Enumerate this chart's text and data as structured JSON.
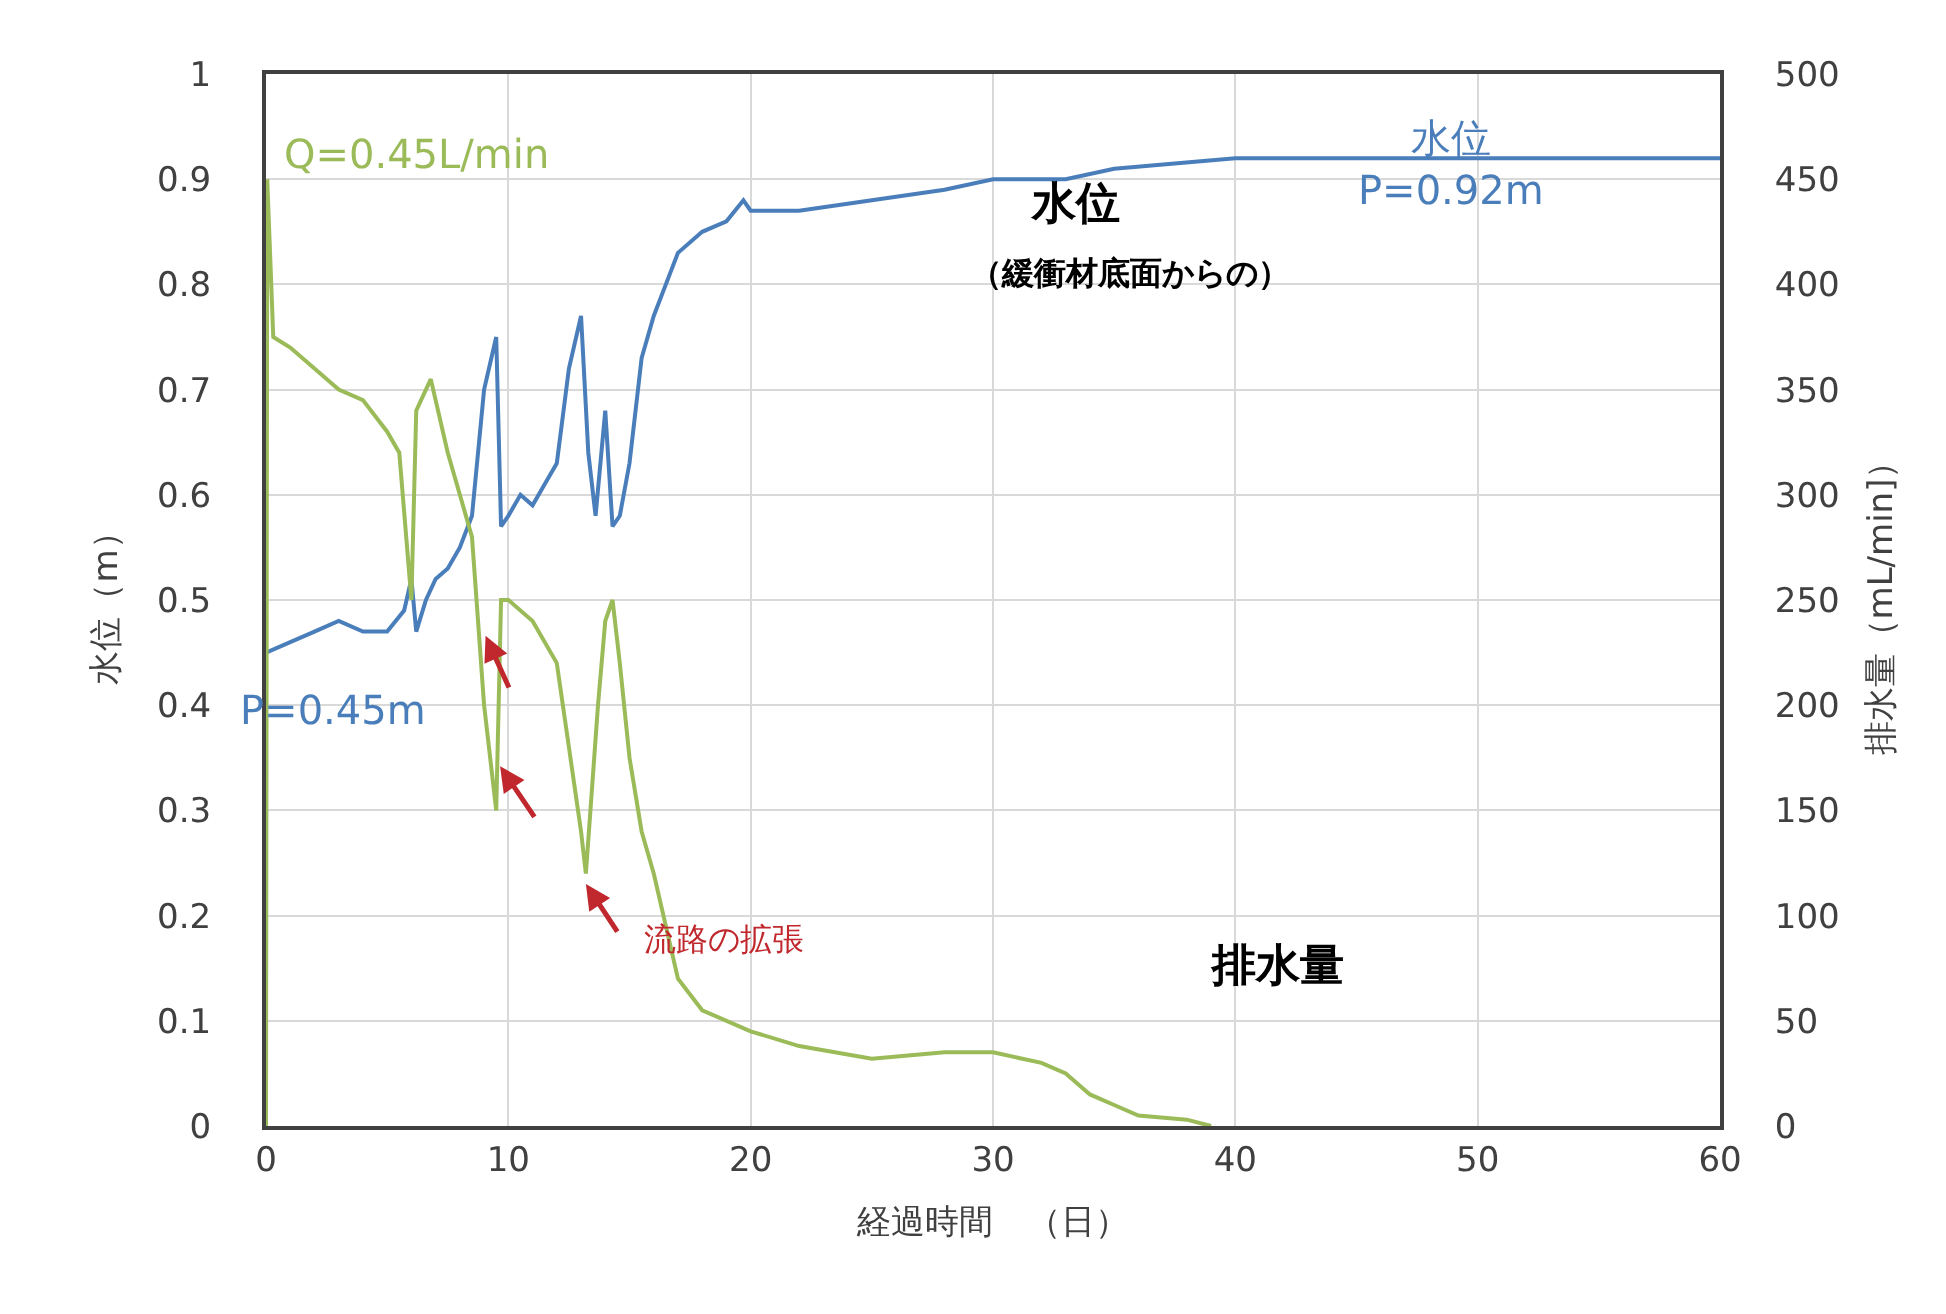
{
  "chart_data": {
    "type": "line",
    "xlabel": "経過時間　（日）",
    "ylabel": "水位（m）",
    "y2label": "排水量（mL/min]）",
    "xlim": [
      0,
      60
    ],
    "xticks": [
      0,
      10,
      20,
      30,
      40,
      50,
      60
    ],
    "ylim": [
      0,
      1
    ],
    "yticks": [
      0,
      0.1,
      0.2,
      0.3,
      0.4,
      0.5,
      0.6,
      0.7,
      0.8,
      0.9,
      1
    ],
    "y2lim": [
      0,
      500
    ],
    "y2ticks": [
      0,
      50,
      100,
      150,
      200,
      250,
      300,
      350,
      400,
      450,
      500
    ],
    "grid": true,
    "marker": "none",
    "line_style": "solid",
    "series": [
      {
        "color": "#4a7ebb",
        "x": [
          0,
          1,
          2,
          3,
          4,
          5,
          5.7,
          6,
          6.2,
          6.6,
          7,
          7.5,
          8,
          8.5,
          9,
          9.5,
          9.7,
          10,
          10.5,
          11,
          11.5,
          12,
          12.5,
          13,
          13.3,
          13.6,
          14,
          14.3,
          14.6,
          15,
          15.5,
          16,
          16.5,
          17,
          18,
          19,
          19.7,
          20,
          22,
          25,
          28,
          30,
          33,
          35,
          40,
          45,
          50,
          55,
          60
        ],
        "values": [
          0.45,
          0.46,
          0.47,
          0.48,
          0.47,
          0.47,
          0.49,
          0.52,
          0.47,
          0.5,
          0.52,
          0.53,
          0.55,
          0.58,
          0.7,
          0.75,
          0.57,
          0.58,
          0.6,
          0.59,
          0.61,
          0.63,
          0.72,
          0.77,
          0.64,
          0.58,
          0.68,
          0.57,
          0.58,
          0.63,
          0.73,
          0.77,
          0.8,
          0.83,
          0.85,
          0.86,
          0.88,
          0.87,
          0.87,
          0.88,
          0.89,
          0.9,
          0.9,
          0.91,
          0.92,
          0.92,
          0.92,
          0.92,
          0.92
        ]
      },
      {
        "color": "#9bbb59",
        "axis": "y2",
        "x": [
          0,
          0.05,
          0.3,
          1,
          2,
          3,
          4,
          5,
          5.5,
          6,
          6.2,
          6.8,
          7.5,
          8,
          8.5,
          9,
          9.5,
          9.7,
          10,
          11,
          12,
          12.5,
          13,
          13.2,
          13.7,
          14,
          14.3,
          14.6,
          15,
          15.5,
          16,
          17,
          18,
          20,
          22,
          25,
          28,
          30,
          32,
          33,
          34,
          35,
          36,
          38,
          39
        ],
        "values": [
          0,
          450,
          375,
          370,
          360,
          350,
          345,
          330,
          320,
          250,
          340,
          355,
          320,
          300,
          280,
          200,
          150,
          250,
          250,
          240,
          220,
          180,
          140,
          120,
          200,
          240,
          250,
          220,
          175,
          140,
          120,
          70,
          55,
          45,
          38,
          32,
          35,
          35,
          30,
          25,
          15,
          10,
          5,
          3,
          0
        ]
      }
    ],
    "annotations": [
      "Q=0.45L/min",
      "P=0.45m",
      "水位\nP=0.92m",
      "水位",
      "（緩衝材底面からの）",
      "流路の拡張",
      "排水量"
    ]
  }
}
